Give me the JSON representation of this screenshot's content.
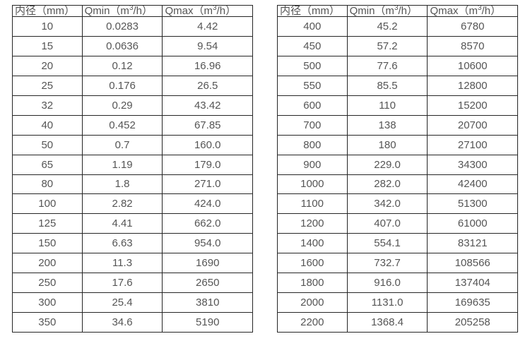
{
  "page": {
    "background_color": "#ffffff",
    "text_color": "#555555",
    "border_color": "#262626"
  },
  "tables": [
    {
      "id": "flow-spec-table-left",
      "headers": [
        "内径（mm）",
        "Qmin（m³/h）",
        "Qmax（m³/h）"
      ],
      "col_widths": [
        "29%",
        "33.5%",
        "37.5%"
      ],
      "rows": [
        [
          "10",
          "0.0283",
          "4.42"
        ],
        [
          "15",
          "0.0636",
          "9.54"
        ],
        [
          "20",
          "0.12",
          "16.96"
        ],
        [
          "25",
          "0.176",
          "26.5"
        ],
        [
          "32",
          "0.29",
          "43.42"
        ],
        [
          "40",
          "0.452",
          "67.85"
        ],
        [
          "50",
          "0.7",
          "160.0"
        ],
        [
          "65",
          "1.19",
          "179.0"
        ],
        [
          "80",
          "1.8",
          "271.0"
        ],
        [
          "100",
          "2.82",
          "424.0"
        ],
        [
          "125",
          "4.41",
          "662.0"
        ],
        [
          "150",
          "6.63",
          "954.0"
        ],
        [
          "200",
          "11.3",
          "1690"
        ],
        [
          "250",
          "17.6",
          "2650"
        ],
        [
          "300",
          "25.4",
          "3810"
        ],
        [
          "350",
          "34.6",
          "5190"
        ]
      ]
    },
    {
      "id": "flow-spec-table-right",
      "headers": [
        "内径（mm）",
        "Qmin（m³/h）",
        "Qmax（m³/h）"
      ],
      "col_widths": [
        "29%",
        "33.5%",
        "37.5%"
      ],
      "rows": [
        [
          "400",
          "45.2",
          "6780"
        ],
        [
          "450",
          "57.2",
          "8570"
        ],
        [
          "500",
          "77.6",
          "10600"
        ],
        [
          "550",
          "85.5",
          "12800"
        ],
        [
          "600",
          "110",
          "15200"
        ],
        [
          "700",
          "138",
          "20700"
        ],
        [
          "800",
          "180",
          "27100"
        ],
        [
          "900",
          "229.0",
          "34300"
        ],
        [
          "1000",
          "282.0",
          "42400"
        ],
        [
          "1100",
          "342.0",
          "51300"
        ],
        [
          "1200",
          "407.0",
          "61000"
        ],
        [
          "1400",
          "554.1",
          "83121"
        ],
        [
          "1600",
          "732.7",
          "108566"
        ],
        [
          "1800",
          "916.0",
          "137404"
        ],
        [
          "2000",
          "1131.0",
          "169635"
        ],
        [
          "2200",
          "1368.4",
          "205258"
        ]
      ]
    }
  ]
}
